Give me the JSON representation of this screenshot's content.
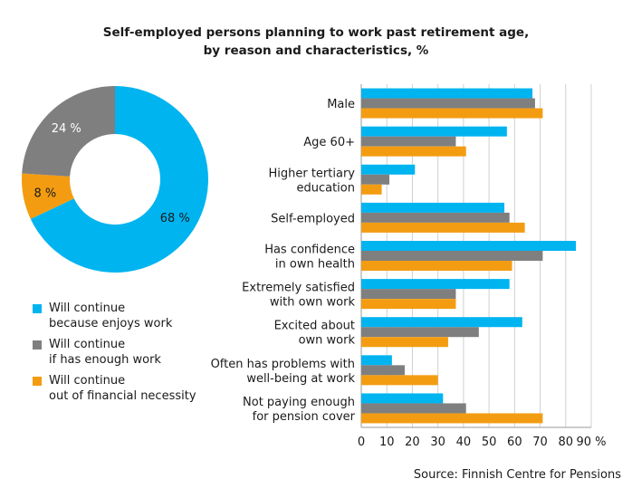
{
  "chart_data": [
    {
      "type": "pie",
      "donut": true,
      "slices": [
        {
          "name": "Will continue because enjoys work",
          "value": 68,
          "label": "68 %",
          "color": "#00b4f0"
        },
        {
          "name": "Will continue out of financial necessity",
          "value": 8,
          "label": "8 %",
          "color": "#f39c12"
        },
        {
          "name": "Will continue if has enough work",
          "value": 24,
          "label": "24 %",
          "color": "#7f7f7f"
        }
      ]
    },
    {
      "type": "bar",
      "orientation": "horizontal",
      "categories": [
        [
          "Male"
        ],
        [
          "Age 60+"
        ],
        [
          "Higher tertiary",
          "education"
        ],
        [
          "Self-employed"
        ],
        [
          "Has confidence",
          "in own health"
        ],
        [
          "Extremely satisfied",
          "with own work"
        ],
        [
          "Excited about",
          "own work"
        ],
        [
          "Often has problems with",
          "well-being at work"
        ],
        [
          "Not paying enough",
          "for pension cover"
        ]
      ],
      "series": [
        {
          "name": "Will continue because enjoys work",
          "color": "#00b4f0",
          "values": [
            67,
            57,
            21,
            56,
            84,
            58,
            63,
            12,
            32
          ]
        },
        {
          "name": "Will continue if has enough work",
          "color": "#7f7f7f",
          "values": [
            68,
            37,
            11,
            58,
            71,
            37,
            46,
            17,
            41
          ]
        },
        {
          "name": "Will continue out of financial necessity",
          "color": "#f39c12",
          "values": [
            71,
            41,
            8,
            64,
            59,
            37,
            34,
            30,
            71
          ]
        }
      ],
      "xlim": [
        0,
        90
      ],
      "xticks": [
        "0",
        "10",
        "20",
        "30",
        "40",
        "50",
        "60",
        "70",
        "80",
        "90 %"
      ],
      "grid": true
    }
  ],
  "title_lines": [
    "Self-employed persons planning to work past retirement age,",
    "by reason and characteristics, %"
  ],
  "legend": [
    {
      "lines": [
        "Will continue",
        "because enjoys work"
      ],
      "color": "#00b4f0"
    },
    {
      "lines": [
        "Will continue",
        "if has enough work"
      ],
      "color": "#7f7f7f"
    },
    {
      "lines": [
        "Will continue",
        "out of financial necessity"
      ],
      "color": "#f39c12"
    }
  ],
  "source": "Source: Finnish Centre for Pensions"
}
